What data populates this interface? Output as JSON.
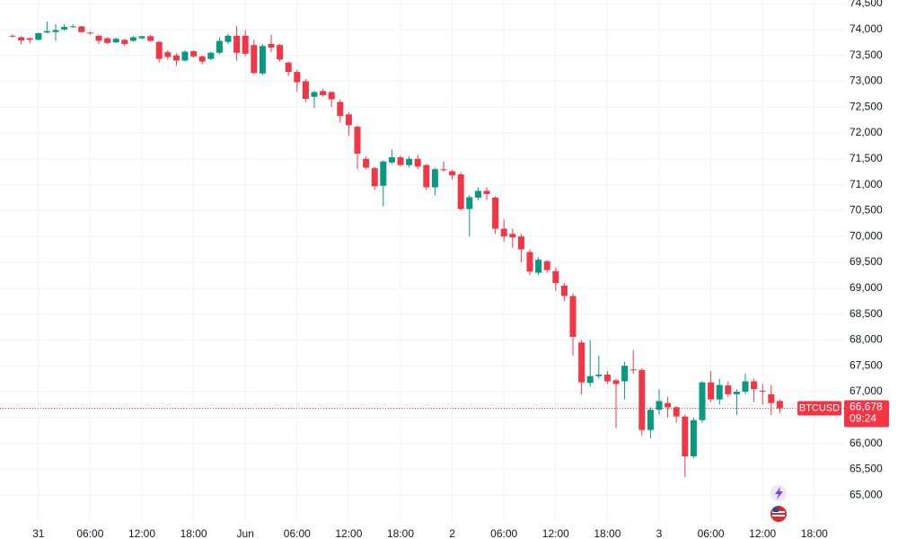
{
  "chart_data": {
    "type": "candlestick",
    "categories": [
      null,
      null,
      null,
      "31",
      null,
      null,
      null,
      null,
      null,
      "06:00",
      null,
      null,
      null,
      null,
      null,
      "12:00",
      null,
      null,
      null,
      null,
      null,
      "18:00",
      null,
      null,
      null,
      null,
      null,
      "Jun",
      null,
      null,
      null,
      null,
      null,
      "06:00",
      null,
      null,
      null,
      null,
      null,
      "12:00",
      null,
      null,
      null,
      null,
      null,
      "18:00",
      null,
      null,
      null,
      null,
      null,
      "2",
      null,
      null,
      null,
      null,
      null,
      "06:00",
      null,
      null,
      null,
      null,
      null,
      "12:00",
      null,
      null,
      null,
      null,
      null,
      "18:00",
      null,
      null,
      null,
      null,
      null,
      "3",
      null,
      null,
      null,
      null,
      null,
      "06:00",
      null,
      null,
      null,
      null,
      null,
      "12:00",
      null,
      null,
      null,
      null,
      null,
      "18:00"
    ],
    "open": [
      73880,
      73850,
      73830,
      73800,
      73940,
      73950,
      74000,
      74050,
      74060,
      73940,
      73880,
      73830,
      73750,
      73800,
      73780,
      73830,
      73870,
      73760,
      73560,
      73500,
      73400,
      73580,
      73480,
      73430,
      73550,
      73760,
      73880,
      73880,
      73700,
      73150,
      73720,
      73700,
      73360,
      73180,
      73000,
      72700,
      72810,
      72790,
      72600,
      72360,
      72120,
      71500,
      71320,
      70980,
      71430,
      71530,
      71380,
      71500,
      71380,
      70950,
      71300,
      71260,
      71200,
      70530,
      70750,
      70880,
      70750,
      70150,
      70050,
      70000,
      69700,
      69300,
      69520,
      69330,
      69050,
      68850,
      67950,
      67170,
      67300,
      67330,
      67220,
      67200,
      67430,
      67420,
      66260,
      66650,
      66780,
      66700,
      66520,
      65750,
      66450,
      67180,
      66850,
      67120,
      66950,
      67000,
      67200,
      67020,
      66950,
      66820,
      null,
      null,
      null,
      null
    ],
    "high": [
      73900,
      73870,
      73850,
      73940,
      74150,
      74100,
      74100,
      74100,
      74070,
      73960,
      73890,
      73850,
      73840,
      73820,
      73870,
      73880,
      73900,
      73780,
      73600,
      73540,
      73600,
      73600,
      73500,
      73570,
      73850,
      73920,
      74070,
      73980,
      73800,
      73720,
      73900,
      73720,
      73380,
      73220,
      73040,
      72820,
      72850,
      72810,
      72650,
      72400,
      72150,
      71550,
      71350,
      71470,
      71680,
      71560,
      71550,
      71580,
      71400,
      71330,
      71450,
      71290,
      71250,
      70800,
      70950,
      70950,
      70780,
      70330,
      70150,
      70050,
      69750,
      69600,
      69550,
      69400,
      69100,
      68900,
      68000,
      68000,
      67700,
      67400,
      67250,
      67580,
      67800,
      67450,
      66700,
      67050,
      66900,
      66720,
      66560,
      66500,
      67200,
      67400,
      67250,
      67200,
      67050,
      67350,
      67250,
      67150,
      67120,
      66850,
      null,
      null,
      null,
      null
    ],
    "low": [
      73840,
      73710,
      73730,
      73790,
      73930,
      73780,
      73980,
      74030,
      73940,
      73900,
      73720,
      73720,
      73740,
      73680,
      73760,
      73810,
      73760,
      73360,
      73420,
      73300,
      73380,
      73460,
      73330,
      73410,
      73520,
      73720,
      73400,
      73480,
      73130,
      73120,
      73560,
      73380,
      73100,
      72800,
      72600,
      72480,
      72700,
      72500,
      72200,
      71950,
      71300,
      71300,
      70900,
      70580,
      71400,
      71350,
      71330,
      71300,
      70900,
      70800,
      71250,
      71100,
      70500,
      70000,
      70700,
      70700,
      70050,
      69900,
      69780,
      69500,
      69250,
      69250,
      69300,
      68950,
      68750,
      67700,
      66950,
      67100,
      67250,
      67150,
      66300,
      66850,
      67350,
      66150,
      66100,
      66550,
      66500,
      66400,
      65350,
      65720,
      66400,
      66800,
      66750,
      66900,
      66550,
      66950,
      66800,
      66750,
      66550,
      66580,
      null,
      null,
      null,
      null
    ],
    "close": [
      73870,
      73790,
      73800,
      73930,
      73970,
      73990,
      74050,
      74060,
      73950,
      73930,
      73780,
      73740,
      73820,
      73720,
      73850,
      73870,
      73780,
      73430,
      73470,
      73400,
      73570,
      73480,
      73380,
      73550,
      73780,
      73880,
      73550,
      73530,
      73160,
      73680,
      73650,
      73420,
      73180,
      72980,
      72660,
      72790,
      72730,
      72650,
      72330,
      72150,
      71600,
      71330,
      70970,
      71450,
      71530,
      71380,
      71500,
      71350,
      70950,
      71300,
      71280,
      71180,
      70530,
      70760,
      70880,
      70820,
      70150,
      70000,
      69980,
      69750,
      69320,
      69550,
      69350,
      69100,
      68850,
      68060,
      67180,
      67300,
      67330,
      67200,
      67150,
      67500,
      67420,
      66260,
      66650,
      66820,
      66700,
      66520,
      65750,
      66450,
      67180,
      66850,
      67130,
      66950,
      67000,
      67200,
      67050,
      67010,
      66780,
      66678,
      null,
      null,
      null,
      null
    ],
    "up_color": "#089981",
    "down_color": "#f23645",
    "ylim": [
      64500,
      74570
    ],
    "yticks": [
      {
        "value": 65000,
        "label": "65,000"
      },
      {
        "value": 65500,
        "label": "65,500"
      },
      {
        "value": 66000,
        "label": "66,000"
      },
      {
        "value": 66500,
        "label": "66,500"
      },
      {
        "value": 67000,
        "label": "67,000"
      },
      {
        "value": 67500,
        "label": "67,500"
      },
      {
        "value": 68000,
        "label": "68,000"
      },
      {
        "value": 68500,
        "label": "68,500"
      },
      {
        "value": 69000,
        "label": "69,000"
      },
      {
        "value": 69500,
        "label": "69,500"
      },
      {
        "value": 70000,
        "label": "70,000"
      },
      {
        "value": 70500,
        "label": "70,500"
      },
      {
        "value": 71000,
        "label": "71,000"
      },
      {
        "value": 71500,
        "label": "71,500"
      },
      {
        "value": 72000,
        "label": "72,000"
      },
      {
        "value": 72500,
        "label": "72,500"
      },
      {
        "value": 73000,
        "label": "73,000"
      },
      {
        "value": 73500,
        "label": "73,500"
      },
      {
        "value": 74000,
        "label": "74,000"
      },
      {
        "value": 74500,
        "label": "74,500"
      }
    ],
    "grid": true,
    "last_price": {
      "symbol": "BTCUSD",
      "value": 66678,
      "label": "66,678",
      "countdown": "09:24"
    }
  }
}
